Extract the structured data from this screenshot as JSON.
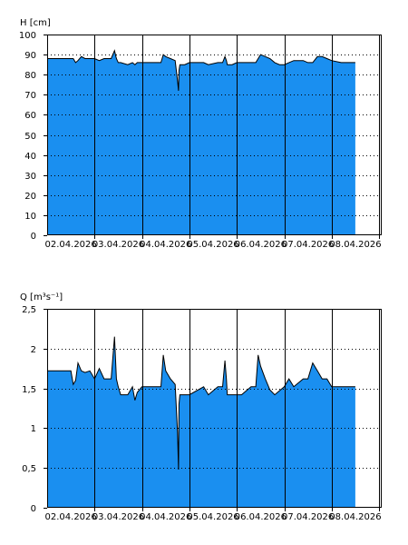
{
  "colors": {
    "fill": "#1a8ff0",
    "outline": "#000000",
    "grid": "#000000",
    "background": "#ffffff"
  },
  "chart_data": [
    {
      "type": "area",
      "ylabel": "H [cm]",
      "ylim": [
        0,
        100
      ],
      "yticks": [
        0,
        10,
        20,
        30,
        40,
        50,
        60,
        70,
        80,
        90,
        100
      ],
      "ytick_labels": [
        "0",
        "10",
        "20",
        "30",
        "40",
        "50",
        "60",
        "70",
        "80",
        "90",
        "100"
      ],
      "xlim": [
        "2026-04-02",
        "2026-04-09"
      ],
      "xtick_labels": [
        "02.04.2026",
        "03.04.2026",
        "04.04.2026",
        "05.04.2026",
        "06.04.2026",
        "07.04.2026",
        "08.04.2026"
      ],
      "grid": true,
      "series": [
        {
          "x": [
            0.0,
            0.55,
            0.6,
            0.65,
            0.72,
            0.8,
            0.9,
            1.0,
            1.1,
            1.2,
            1.35,
            1.42,
            1.46,
            1.5,
            1.55,
            1.7,
            1.8,
            1.85,
            1.9,
            2.0,
            2.1,
            2.3,
            2.4,
            2.45,
            2.5,
            2.6,
            2.7,
            2.75,
            2.77,
            2.78,
            2.8,
            2.9,
            3.0,
            3.1,
            3.3,
            3.4,
            3.6,
            3.7,
            3.75,
            3.78,
            3.8,
            3.9,
            4.0,
            4.1,
            4.3,
            4.4,
            4.5,
            4.6,
            4.7,
            4.8,
            4.9,
            5.0,
            5.1,
            5.2,
            5.4,
            5.5,
            5.6,
            5.7,
            5.8,
            5.9,
            6.0,
            6.2,
            6.5
          ],
          "y": [
            88,
            88,
            86,
            87,
            89,
            88,
            88,
            88,
            87,
            88,
            88,
            92,
            88,
            86,
            86,
            85,
            86,
            85,
            86,
            86,
            86,
            86,
            86,
            90,
            89,
            88,
            87,
            77,
            72,
            82,
            85,
            85,
            86,
            86,
            86,
            85,
            86,
            86,
            89,
            87,
            85,
            85,
            86,
            86,
            86,
            86,
            90,
            89,
            88,
            86,
            85,
            85,
            86,
            87,
            87,
            86,
            86,
            89,
            89,
            88,
            87,
            86,
            86
          ]
        }
      ]
    },
    {
      "type": "area",
      "ylabel": "Q [m³s⁻¹]",
      "ylim": [
        0,
        2.5
      ],
      "yticks": [
        0,
        0.5,
        1,
        1.5,
        2,
        2.5
      ],
      "ytick_labels": [
        "0",
        "0,5",
        "1",
        "1,5",
        "2",
        "2,5"
      ],
      "xlim": [
        "2026-04-02",
        "2026-04-09"
      ],
      "xtick_labels": [
        "02.04.2026",
        "03.04.2026",
        "04.04.2026",
        "05.04.2026",
        "06.04.2026",
        "07.04.2026",
        "08.04.2026"
      ],
      "grid": true,
      "series": [
        {
          "x": [
            0.0,
            0.5,
            0.55,
            0.6,
            0.65,
            0.72,
            0.8,
            0.9,
            1.0,
            1.1,
            1.2,
            1.35,
            1.42,
            1.46,
            1.5,
            1.55,
            1.7,
            1.8,
            1.85,
            1.9,
            2.0,
            2.3,
            2.4,
            2.45,
            2.5,
            2.6,
            2.7,
            2.75,
            2.77,
            2.78,
            2.8,
            3.0,
            3.3,
            3.4,
            3.6,
            3.7,
            3.75,
            3.78,
            3.8,
            4.1,
            4.3,
            4.4,
            4.45,
            4.5,
            4.6,
            4.7,
            4.8,
            5.0,
            5.1,
            5.2,
            5.4,
            5.5,
            5.6,
            5.7,
            5.8,
            5.9,
            6.0,
            6.2,
            6.5
          ],
          "y": [
            1.72,
            1.72,
            1.55,
            1.6,
            1.82,
            1.72,
            1.7,
            1.72,
            1.62,
            1.75,
            1.62,
            1.62,
            2.15,
            1.62,
            1.52,
            1.42,
            1.42,
            1.52,
            1.35,
            1.45,
            1.52,
            1.52,
            1.52,
            1.92,
            1.72,
            1.62,
            1.55,
            0.95,
            0.48,
            1.3,
            1.42,
            1.42,
            1.52,
            1.42,
            1.52,
            1.52,
            1.85,
            1.62,
            1.42,
            1.42,
            1.52,
            1.52,
            1.92,
            1.78,
            1.62,
            1.48,
            1.42,
            1.52,
            1.62,
            1.52,
            1.62,
            1.62,
            1.82,
            1.72,
            1.62,
            1.62,
            1.52,
            1.52,
            1.52
          ]
        }
      ]
    }
  ]
}
